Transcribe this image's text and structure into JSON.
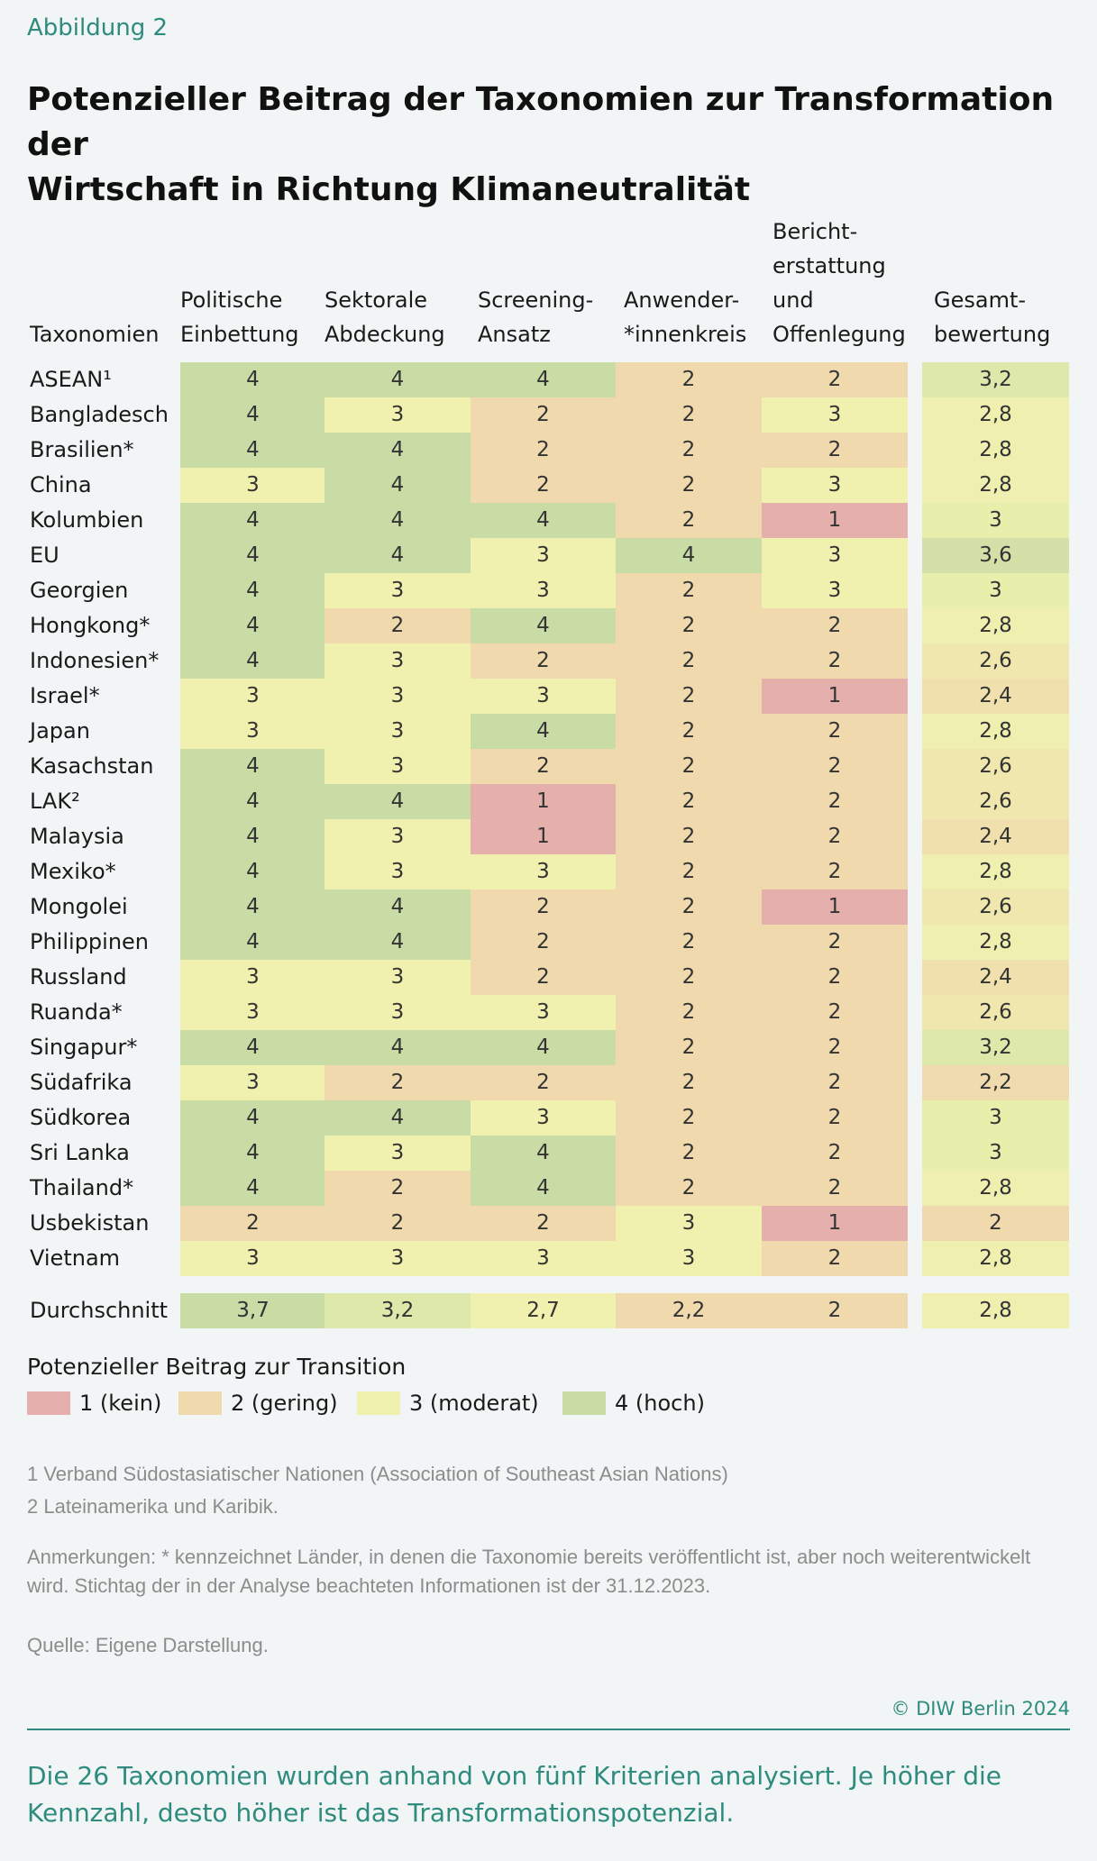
{
  "figure_label": "Abbildung 2",
  "title_line1": "Potenzieller Beitrag der Taxonomien zur Transformation der",
  "title_line2": "Wirtschaft in Richtung Klimaneutralität",
  "headers": {
    "row_header": "Taxonomien",
    "col1": [
      "Politische",
      "Einbettung"
    ],
    "col2": [
      "Sektorale",
      "Abdeckung"
    ],
    "col3": [
      "Screening-",
      "Ansatz"
    ],
    "col4": [
      "Anwender-",
      "*innenkreis"
    ],
    "col5": [
      "Bericht-",
      "erstattung",
      "und",
      "Offenlegung"
    ],
    "col6": [
      "Gesamt-",
      "bewertung"
    ]
  },
  "chart_data": {
    "type": "table",
    "columns": [
      "Politische Einbettung",
      "Sektorale Abdeckung",
      "Screening-Ansatz",
      "Anwender-*innenkreis",
      "Berichterstattung und Offenlegung",
      "Gesamtbewertung"
    ],
    "rows": [
      {
        "label": "ASEAN¹",
        "values": [
          "4",
          "4",
          "4",
          "2",
          "2"
        ],
        "total": "3,2",
        "total_num": 3.2
      },
      {
        "label": "Bangladesch",
        "values": [
          "4",
          "3",
          "2",
          "2",
          "3"
        ],
        "total": "2,8",
        "total_num": 2.8
      },
      {
        "label": "Brasilien*",
        "values": [
          "4",
          "4",
          "2",
          "2",
          "2"
        ],
        "total": "2,8",
        "total_num": 2.8
      },
      {
        "label": "China",
        "values": [
          "3",
          "4",
          "2",
          "2",
          "3"
        ],
        "total": "2,8",
        "total_num": 2.8
      },
      {
        "label": "Kolumbien",
        "values": [
          "4",
          "4",
          "4",
          "2",
          "1"
        ],
        "total": "3",
        "total_num": 3.0
      },
      {
        "label": "EU",
        "values": [
          "4",
          "4",
          "3",
          "4",
          "3"
        ],
        "total": "3,6",
        "total_num": 3.6
      },
      {
        "label": "Georgien",
        "values": [
          "4",
          "3",
          "3",
          "2",
          "3"
        ],
        "total": "3",
        "total_num": 3.0
      },
      {
        "label": "Hongkong*",
        "values": [
          "4",
          "2",
          "4",
          "2",
          "2"
        ],
        "total": "2,8",
        "total_num": 2.8
      },
      {
        "label": "Indonesien*",
        "values": [
          "4",
          "3",
          "2",
          "2",
          "2"
        ],
        "total": "2,6",
        "total_num": 2.6
      },
      {
        "label": "Israel*",
        "values": [
          "3",
          "3",
          "3",
          "2",
          "1"
        ],
        "total": "2,4",
        "total_num": 2.4
      },
      {
        "label": "Japan",
        "values": [
          "3",
          "3",
          "4",
          "2",
          "2"
        ],
        "total": "2,8",
        "total_num": 2.8
      },
      {
        "label": "Kasachstan",
        "values": [
          "4",
          "3",
          "2",
          "2",
          "2"
        ],
        "total": "2,6",
        "total_num": 2.6
      },
      {
        "label": "LAK²",
        "values": [
          "4",
          "4",
          "1",
          "2",
          "2"
        ],
        "total": "2,6",
        "total_num": 2.6
      },
      {
        "label": "Malaysia",
        "values": [
          "4",
          "3",
          "1",
          "2",
          "2"
        ],
        "total": "2,4",
        "total_num": 2.4
      },
      {
        "label": "Mexiko*",
        "values": [
          "4",
          "3",
          "3",
          "2",
          "2"
        ],
        "total": "2,8",
        "total_num": 2.8
      },
      {
        "label": "Mongolei",
        "values": [
          "4",
          "4",
          "2",
          "2",
          "1"
        ],
        "total": "2,6",
        "total_num": 2.6
      },
      {
        "label": "Philippinen",
        "values": [
          "4",
          "4",
          "2",
          "2",
          "2"
        ],
        "total": "2,8",
        "total_num": 2.8
      },
      {
        "label": "Russland",
        "values": [
          "3",
          "3",
          "2",
          "2",
          "2"
        ],
        "total": "2,4",
        "total_num": 2.4
      },
      {
        "label": "Ruanda*",
        "values": [
          "3",
          "3",
          "3",
          "2",
          "2"
        ],
        "total": "2,6",
        "total_num": 2.6
      },
      {
        "label": "Singapur*",
        "values": [
          "4",
          "4",
          "4",
          "2",
          "2"
        ],
        "total": "3,2",
        "total_num": 3.2
      },
      {
        "label": "Südafrika",
        "values": [
          "3",
          "2",
          "2",
          "2",
          "2"
        ],
        "total": "2,2",
        "total_num": 2.2
      },
      {
        "label": "Südkorea",
        "values": [
          "4",
          "4",
          "3",
          "2",
          "2"
        ],
        "total": "3",
        "total_num": 3.0
      },
      {
        "label": "Sri Lanka",
        "values": [
          "4",
          "3",
          "4",
          "2",
          "2"
        ],
        "total": "3",
        "total_num": 3.0
      },
      {
        "label": "Thailand*",
        "values": [
          "4",
          "2",
          "4",
          "2",
          "2"
        ],
        "total": "2,8",
        "total_num": 2.8
      },
      {
        "label": "Usbekistan",
        "values": [
          "2",
          "2",
          "2",
          "3",
          "1"
        ],
        "total": "2",
        "total_num": 2.0
      },
      {
        "label": "Vietnam",
        "values": [
          "3",
          "3",
          "3",
          "3",
          "2"
        ],
        "total": "2,8",
        "total_num": 2.8
      }
    ],
    "average": {
      "label": "Durchschnitt",
      "values": [
        "3,7",
        "3,2",
        "2,7",
        "2,2",
        "2"
      ],
      "values_num": [
        3.7,
        3.2,
        2.7,
        2.2,
        2.0
      ],
      "total": "2,8",
      "total_num": 2.8
    }
  },
  "legend": {
    "title": "Potenzieller Beitrag zur Transition",
    "items": [
      {
        "label": "1 (kein)",
        "color": "#e5b0ab"
      },
      {
        "label": "2 (gering)",
        "color": "#efd9ad"
      },
      {
        "label": "3 (moderat)",
        "color": "#f0f1ae"
      },
      {
        "label": "4 (hoch)",
        "color": "#c9dca6"
      }
    ]
  },
  "footnotes": [
    "1   Verband Südostasiatischer Nationen (Association of Southeast Asian Nations)",
    "2   Lateinamerika und Karibik."
  ],
  "remarks": "Anmerkungen: * kennzeichnet Länder, in denen die Taxonomie bereits veröffentlicht ist, aber noch weiterentwickelt wird. Stichtag der in der Analyse beachteten Informationen ist der 31.12.2023.",
  "source": "Quelle: Eigene Darstellung.",
  "copyright": "© DIW Berlin 2024",
  "summary": "Die 26 Taxonomien wurden anhand von fünf Kriterien analysiert. Je höher die Kennzahl, desto höher ist das Transformationspotenzial."
}
